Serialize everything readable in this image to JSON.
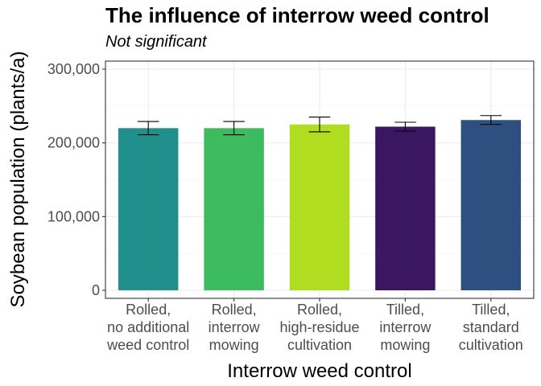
{
  "chart_data": {
    "type": "bar",
    "title": "The influence of interrow weed control",
    "subtitle": "Not significant",
    "xlabel": "Interrow weed control",
    "ylabel": "Soybean population (plants/a)",
    "ylim": [
      0,
      300000
    ],
    "yticks": [
      0,
      100000,
      200000,
      300000
    ],
    "ytick_labels": [
      "0",
      "100,000",
      "200,000",
      "300,000"
    ],
    "grid": true,
    "categories": [
      [
        "Rolled,",
        "no additional",
        "weed control"
      ],
      [
        "Rolled,",
        "interrow",
        "mowing"
      ],
      [
        "Rolled,",
        "high-residue",
        "cultivation"
      ],
      [
        "Tilled,",
        "interrow",
        "mowing"
      ],
      [
        "Tilled,",
        "standard",
        "cultivation"
      ]
    ],
    "values": [
      220000,
      220000,
      225000,
      222000,
      231000
    ],
    "error_low": [
      211000,
      211000,
      215000,
      216000,
      225000
    ],
    "error_high": [
      229000,
      229000,
      235000,
      228000,
      237000
    ],
    "colors": [
      "#21908C",
      "#3CBB5F",
      "#B0DD20",
      "#3A1760",
      "#2D5080"
    ]
  }
}
